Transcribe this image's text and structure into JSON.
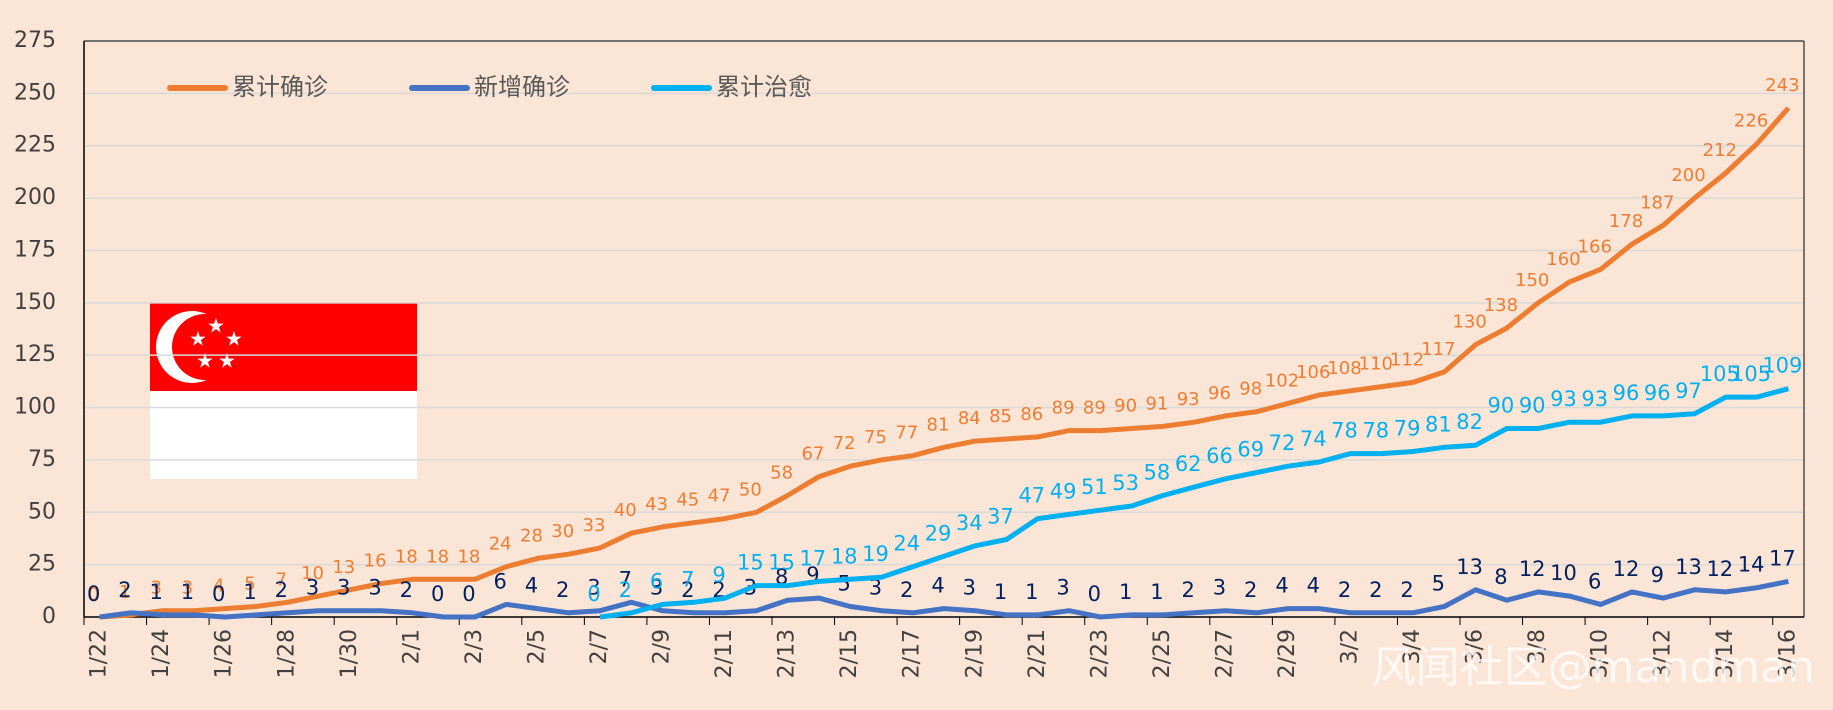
{
  "chart_data": {
    "type": "line",
    "categories": [
      "1/22",
      null,
      "1/24",
      null,
      "1/26",
      null,
      "1/28",
      null,
      "1/30",
      null,
      "2/1",
      null,
      "2/3",
      null,
      "2/5",
      null,
      "2/7",
      null,
      "2/9",
      null,
      "2/11",
      null,
      "2/13",
      null,
      "2/15",
      null,
      "2/17",
      null,
      "2/19",
      null,
      "2/21",
      null,
      "2/23",
      null,
      "2/25",
      null,
      "2/27",
      null,
      "2/29",
      null,
      "3/2",
      null,
      "3/4",
      null,
      "3/6",
      null,
      "3/8",
      null,
      "3/10",
      null,
      "3/12",
      null,
      "3/14",
      null,
      "3/16"
    ],
    "series": [
      {
        "name": "累计确诊",
        "color": "#ED7D31",
        "label_color": "#ED7D31",
        "values": [
          0,
          1,
          3,
          3,
          4,
          5,
          7,
          10,
          13,
          16,
          18,
          18,
          18,
          24,
          28,
          30,
          33,
          40,
          43,
          45,
          47,
          50,
          58,
          67,
          72,
          75,
          77,
          81,
          84,
          85,
          86,
          89,
          89,
          90,
          91,
          93,
          96,
          98,
          102,
          106,
          108,
          110,
          112,
          117,
          130,
          138,
          150,
          160,
          166,
          178,
          187,
          200,
          212,
          226,
          243
        ]
      },
      {
        "name": "新增确诊",
        "color": "#4472C4",
        "label_color": "#002060",
        "values": [
          0,
          2,
          1,
          1,
          0,
          1,
          2,
          3,
          3,
          3,
          2,
          0,
          0,
          6,
          4,
          2,
          3,
          7,
          3,
          2,
          2,
          3,
          8,
          9,
          5,
          3,
          2,
          4,
          3,
          1,
          1,
          3,
          0,
          1,
          1,
          2,
          3,
          2,
          4,
          4,
          2,
          2,
          2,
          5,
          13,
          8,
          12,
          10,
          6,
          12,
          9,
          13,
          12,
          14,
          17
        ]
      },
      {
        "name": "累计治愈",
        "color": "#00B0F0",
        "label_color": "#00B0F0",
        "values": [
          null,
          null,
          null,
          null,
          null,
          null,
          null,
          null,
          null,
          null,
          null,
          null,
          null,
          null,
          null,
          null,
          0,
          2,
          6,
          7,
          9,
          15,
          15,
          17,
          18,
          19,
          24,
          29,
          34,
          37,
          47,
          49,
          51,
          53,
          58,
          62,
          66,
          69,
          72,
          74,
          78,
          78,
          79,
          81,
          82,
          90,
          90,
          93,
          93,
          96,
          96,
          97,
          105,
          105,
          109
        ]
      }
    ],
    "ylim": [
      0,
      275
    ],
    "yticks": [
      0,
      25,
      50,
      75,
      100,
      125,
      150,
      175,
      200,
      225,
      250,
      275
    ],
    "grid": true,
    "legend": "top-left",
    "watermark": "风闻社区@mandman"
  }
}
